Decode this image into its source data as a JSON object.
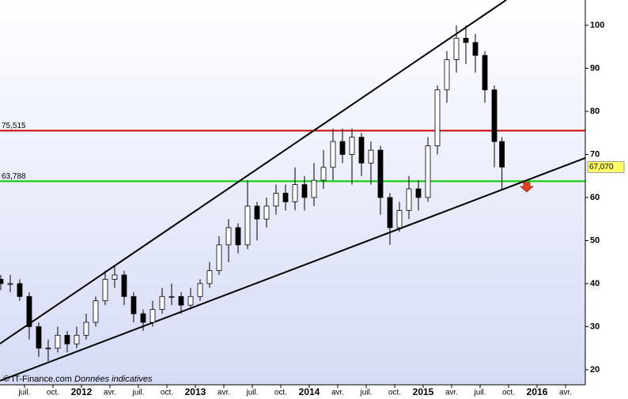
{
  "chart_data": {
    "type": "candlestick",
    "source": "© IT-Finance.com",
    "note": "Données indicatives",
    "xlim": [
      -8.58,
      53.08
    ],
    "ylim": [
      16.5,
      105.87
    ],
    "xticks": [
      {
        "value": -6,
        "label": "juil."
      },
      {
        "value": -3,
        "label": "oct."
      },
      {
        "value": 0,
        "label": "2012"
      },
      {
        "value": 3,
        "label": "avr."
      },
      {
        "value": 6,
        "label": "juil."
      },
      {
        "value": 9,
        "label": "oct."
      },
      {
        "value": 12,
        "label": "2013"
      },
      {
        "value": 15,
        "label": "avr."
      },
      {
        "value": 18,
        "label": "juil."
      },
      {
        "value": 21,
        "label": "oct."
      },
      {
        "value": 24,
        "label": "2014"
      },
      {
        "value": 27,
        "label": "avr."
      },
      {
        "value": 30,
        "label": "juil."
      },
      {
        "value": 33,
        "label": "oct."
      },
      {
        "value": 36,
        "label": "2015"
      },
      {
        "value": 39,
        "label": "avr."
      },
      {
        "value": 42,
        "label": "juil."
      },
      {
        "value": 45,
        "label": "oct."
      },
      {
        "value": 48,
        "label": "2016"
      },
      {
        "value": 51,
        "label": "avr."
      }
    ],
    "yticks": [
      20,
      30,
      40,
      50,
      60,
      70,
      80,
      90,
      100
    ],
    "series": [
      {
        "up_color": "#ffffff",
        "down_color": "#000000",
        "wick_color": "#000000",
        "x": [
          -8.5,
          -7.5,
          -6.5,
          -5.5,
          -4.5,
          -3.5,
          -2.5,
          -1.5,
          -0.5,
          0.5,
          1.5,
          2.5,
          3.5,
          4.5,
          5.5,
          6.5,
          7.5,
          8.5,
          9.5,
          10.5,
          11.5,
          12.5,
          13.5,
          14.5,
          15.5,
          16.5,
          17.5,
          18.5,
          19.5,
          20.5,
          21.5,
          22.5,
          23.5,
          24.5,
          25.5,
          26.5,
          27.5,
          28.5,
          29.5,
          30.5,
          31.5,
          32.5,
          33.5,
          34.5,
          35.5,
          36.5,
          37.5,
          38.5,
          39.5,
          40.5,
          41.5,
          42.5,
          43.5,
          44.3
        ],
        "open": [
          41,
          40,
          40,
          37,
          30,
          25,
          25,
          28,
          26,
          28,
          31,
          36,
          41,
          42,
          37,
          33,
          31,
          34,
          37,
          37,
          35,
          37,
          40,
          43,
          49,
          53,
          49,
          58,
          55,
          58,
          61,
          59,
          63,
          60,
          64,
          67,
          73,
          70,
          74,
          68,
          71,
          60,
          53,
          57,
          62,
          60,
          72,
          85,
          92,
          97,
          96,
          93,
          85,
          73
        ],
        "high": [
          42,
          42,
          41,
          38,
          31,
          27,
          30,
          29,
          30,
          33,
          37,
          43,
          44,
          43,
          38,
          34,
          36,
          39,
          40,
          38,
          39,
          41,
          45,
          51,
          55,
          54,
          64,
          59,
          60,
          63,
          63,
          67,
          65,
          68,
          71,
          76,
          76,
          76,
          75,
          73,
          72,
          61,
          59,
          65,
          64,
          74,
          86,
          94,
          100,
          100,
          98,
          94,
          86,
          74
        ],
        "low": [
          38.5,
          38,
          36,
          27,
          23,
          22,
          24,
          24,
          25,
          27,
          30,
          35,
          39,
          35,
          31,
          29,
          30,
          33,
          35,
          33,
          34,
          36,
          39,
          42,
          45,
          47,
          48,
          50,
          53,
          56,
          57,
          57,
          57,
          58,
          62,
          64,
          68,
          63,
          65,
          63,
          56,
          49,
          52,
          55,
          57,
          59,
          70,
          82,
          89,
          91,
          89,
          82,
          67,
          62
        ],
        "close": [
          40,
          40,
          37,
          30,
          25,
          25,
          28,
          26,
          28,
          31,
          36,
          41,
          42,
          37,
          33,
          31,
          34,
          37,
          37,
          35,
          37,
          40,
          43,
          49,
          53,
          49,
          58,
          55,
          58,
          61,
          59,
          63,
          60,
          64,
          67,
          73,
          70,
          74,
          68,
          71,
          60,
          53,
          57,
          62,
          60,
          72,
          85,
          92,
          97,
          96,
          93,
          85,
          73,
          67.07
        ]
      }
    ],
    "levels": [
      {
        "value": 75.515,
        "label": "75,515",
        "color": "#cc0000"
      },
      {
        "value": 63.788,
        "label": "63,788",
        "color": "#00cc00"
      }
    ],
    "last_price": {
      "value": 67.07,
      "label": "67,070",
      "color": "#ffff66"
    },
    "trendlines": [
      {
        "x": [
          -8.58,
          44.75
        ],
        "y": [
          26.06,
          105.87
        ],
        "color": "#000000"
      },
      {
        "x": [
          -8.58,
          53.08
        ],
        "y": [
          17.43,
          69.17
        ],
        "color": "#000000"
      }
    ]
  }
}
